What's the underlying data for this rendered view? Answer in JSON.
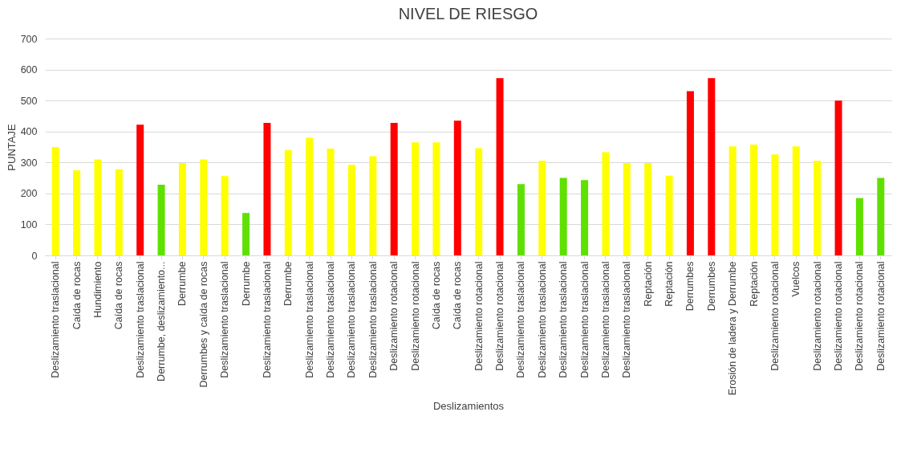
{
  "chart_data": {
    "type": "bar",
    "title": "NIVEL DE RIESGO",
    "xlabel": "Deslizamientos",
    "ylabel": "PUNTAJE",
    "categories": [
      "Deslizamiento traslacional",
      "Caída de rocas",
      "Hundimiento",
      "Caída de rocas",
      "Deslizamiento traslacional",
      "Derrumbe, deslizamiento...",
      "Derrumbe",
      "Derrumbes y caída de rocas",
      "Deslizamiento traslacional",
      "Derrumbe",
      "Deslizamiento traslacional",
      "Derrumbe",
      "Deslizamiento traslacional",
      "Deslizamiento traslacional",
      "Deslizamiento traslacional",
      "Deslizamiento traslacional",
      "Deslizamiento rotacional",
      "Deslizamiento rotacional",
      "Caída de rocas",
      "Caída de rocas",
      "Deslizamiento rotacional",
      "Deslizamiento rotacional",
      "Deslizamiento traslacional",
      "Deslizamiento traslacional",
      "Deslizamiento traslacional",
      "Deslizamiento traslacional",
      "Deslizamiento traslacional",
      "Deslizamiento traslacional",
      "Reptación",
      "Reptación",
      "Derrumbes",
      "Derrumbes",
      "Erosión de ladera y Derrumbe",
      "Reptación",
      "Deslizamiento rotacional",
      "Vuelcos",
      "Deslizamiento rotacional",
      "Deslizamiento rotacional",
      "Deslizamiento rotacional",
      "Deslizamiento rotacional"
    ],
    "values": [
      350,
      275,
      310,
      278,
      422,
      228,
      298,
      310,
      256,
      137,
      428,
      340,
      380,
      345,
      292,
      320,
      428,
      365,
      365,
      435,
      346,
      572,
      230,
      305,
      250,
      243,
      333,
      298,
      298,
      257,
      530,
      572,
      352,
      358,
      326,
      352,
      305,
      500,
      185,
      250
    ],
    "colors": [
      "#ffff00",
      "#ffff00",
      "#ffff00",
      "#ffff00",
      "#ff0000",
      "#5fe000",
      "#ffff00",
      "#ffff00",
      "#ffff00",
      "#5fe000",
      "#ff0000",
      "#ffff00",
      "#ffff00",
      "#ffff00",
      "#ffff00",
      "#ffff00",
      "#ff0000",
      "#ffff00",
      "#ffff00",
      "#ff0000",
      "#ffff00",
      "#ff0000",
      "#5fe000",
      "#ffff00",
      "#5fe000",
      "#5fe000",
      "#ffff00",
      "#ffff00",
      "#ffff00",
      "#ffff00",
      "#ff0000",
      "#ff0000",
      "#ffff00",
      "#ffff00",
      "#ffff00",
      "#ffff00",
      "#ffff00",
      "#ff0000",
      "#5fe000",
      "#5fe000"
    ],
    "ylim": [
      0,
      700
    ],
    "yticks": [
      0,
      100,
      200,
      300,
      400,
      500,
      600,
      700
    ],
    "grid": "y"
  }
}
